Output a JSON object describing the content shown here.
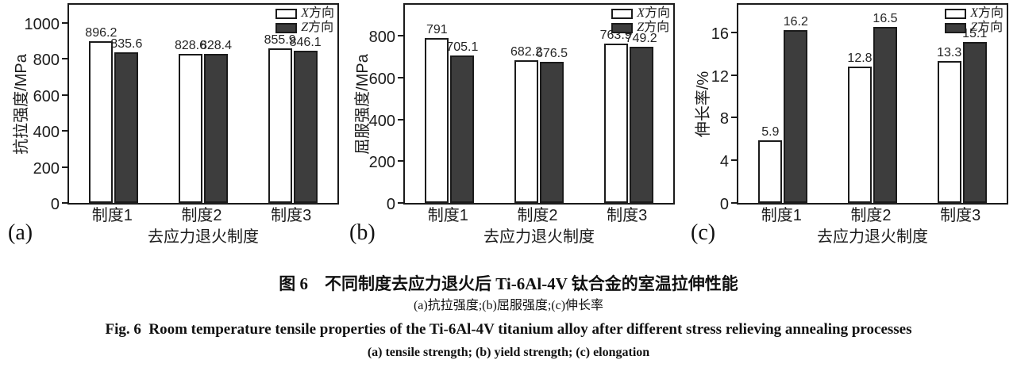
{
  "colors": {
    "background": "#ffffff",
    "axis": "#1b1b1b",
    "x_series_fill": "#ffffff",
    "z_series_fill": "#3d3d3d",
    "text": "#1b1b1b"
  },
  "chart_data": [
    {
      "type": "bar",
      "panel_label": "(a)",
      "categories": [
        "制度1",
        "制度2",
        "制度3"
      ],
      "series": [
        {
          "name": "X方向",
          "fill": "#ffffff",
          "values": [
            896.2,
            828.6,
            855.9
          ]
        },
        {
          "name": "Z方向",
          "fill": "#3d3d3d",
          "values": [
            835.6,
            828.4,
            846.1
          ]
        }
      ],
      "xlabel": "去应力退火制度",
      "ylabel": "抗拉强度/MPa",
      "yticks": [
        0,
        200,
        400,
        600,
        800,
        1000
      ],
      "ylim": [
        0,
        1100
      ],
      "grid": false,
      "legend_position": "top-right"
    },
    {
      "type": "bar",
      "panel_label": "(b)",
      "categories": [
        "制度1",
        "制度2",
        "制度3"
      ],
      "series": [
        {
          "name": "X方向",
          "fill": "#ffffff",
          "values": [
            791,
            682.2,
            763.9
          ]
        },
        {
          "name": "Z方向",
          "fill": "#3d3d3d",
          "values": [
            705.1,
            676.5,
            749.2
          ]
        }
      ],
      "xlabel": "去应力退火制度",
      "ylabel": "屈服强度/MPa",
      "yticks": [
        0,
        200,
        400,
        600,
        800
      ],
      "ylim": [
        0,
        950
      ],
      "grid": false,
      "legend_position": "top-right"
    },
    {
      "type": "bar",
      "panel_label": "(c)",
      "categories": [
        "制度1",
        "制度2",
        "制度3"
      ],
      "series": [
        {
          "name": "X方向",
          "fill": "#ffffff",
          "values": [
            5.9,
            12.8,
            13.3
          ]
        },
        {
          "name": "Z方向",
          "fill": "#3d3d3d",
          "values": [
            16.2,
            16.5,
            15.1
          ]
        }
      ],
      "xlabel": "去应力退火制度",
      "ylabel": "伸长率/%",
      "yticks": [
        0,
        4,
        8,
        12,
        16
      ],
      "ylim": [
        0,
        18.6
      ],
      "grid": false,
      "legend_position": "top-right"
    }
  ],
  "caption": {
    "title_zh": "图 6 不同制度去应力退火后 Ti-6Al-4V 钛合金的室温拉伸性能",
    "subtitle_zh": "(a)抗拉强度;(b)屈服强度;(c)伸长率",
    "title_en": "Fig. 6 Room temperature tensile properties of the Ti-6Al-4V titanium alloy after different stress relieving annealing processes",
    "subtitle_en": "(a) tensile strength; (b) yield strength; (c) elongation"
  }
}
